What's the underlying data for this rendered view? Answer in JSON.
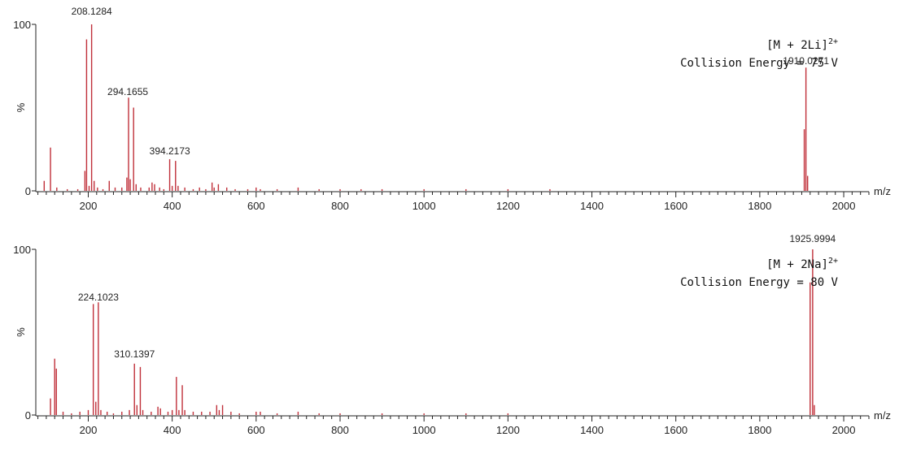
{
  "colors": {
    "peak": "#c0303a",
    "axis": "#222222",
    "text": "#222222"
  },
  "chart_data": [
    {
      "type": "bar",
      "name": "panel-li",
      "xlabel": "m/z",
      "ylabel": "%",
      "xlim": [
        75,
        2060
      ],
      "ylim": [
        0,
        100
      ],
      "x_ticks": [
        200,
        400,
        600,
        800,
        1000,
        1200,
        1400,
        1600,
        1800,
        2000
      ],
      "y_ticks": [
        0,
        100
      ],
      "annotation_line1": "[M + 2Li]",
      "annotation_charge": "2+",
      "annotation_line2": "Collision Energy = 75 V",
      "peak_labels": [
        {
          "mz": 208.1284,
          "text": "208.1284"
        },
        {
          "mz": 294.1655,
          "text": "294.1655"
        },
        {
          "mz": 394.2173,
          "text": "394.2173"
        },
        {
          "mz": 1910.0271,
          "text": "1910.0271"
        }
      ],
      "peaks": [
        [
          95,
          6
        ],
        [
          110,
          26
        ],
        [
          125,
          2
        ],
        [
          150,
          1
        ],
        [
          175,
          1
        ],
        [
          192,
          12
        ],
        [
          196,
          91
        ],
        [
          202,
          3
        ],
        [
          208,
          100
        ],
        [
          214,
          6
        ],
        [
          222,
          2
        ],
        [
          235,
          1
        ],
        [
          250,
          6
        ],
        [
          264,
          2
        ],
        [
          280,
          2
        ],
        [
          292,
          8
        ],
        [
          296,
          56
        ],
        [
          300,
          7
        ],
        [
          308,
          50
        ],
        [
          314,
          4
        ],
        [
          325,
          2
        ],
        [
          345,
          2
        ],
        [
          352,
          5
        ],
        [
          358,
          4
        ],
        [
          370,
          2
        ],
        [
          380,
          1
        ],
        [
          394,
          19
        ],
        [
          400,
          3
        ],
        [
          408,
          18
        ],
        [
          414,
          3
        ],
        [
          430,
          2
        ],
        [
          450,
          1
        ],
        [
          465,
          2
        ],
        [
          480,
          1
        ],
        [
          495,
          5
        ],
        [
          500,
          2
        ],
        [
          510,
          4
        ],
        [
          530,
          2
        ],
        [
          550,
          1
        ],
        [
          580,
          1
        ],
        [
          600,
          2
        ],
        [
          610,
          1
        ],
        [
          650,
          1
        ],
        [
          700,
          2
        ],
        [
          750,
          1
        ],
        [
          800,
          1
        ],
        [
          850,
          1
        ],
        [
          900,
          1
        ],
        [
          1000,
          1
        ],
        [
          1100,
          1
        ],
        [
          1200,
          1
        ],
        [
          1300,
          1
        ],
        [
          1906,
          37
        ],
        [
          1910,
          74
        ],
        [
          1914,
          9
        ]
      ]
    },
    {
      "type": "bar",
      "name": "panel-na",
      "xlabel": "m/z",
      "ylabel": "%",
      "xlim": [
        75,
        2060
      ],
      "ylim": [
        0,
        100
      ],
      "x_ticks": [
        200,
        400,
        600,
        800,
        1000,
        1200,
        1400,
        1600,
        1800,
        2000
      ],
      "y_ticks": [
        0,
        100
      ],
      "annotation_line1": "[M + 2Na]",
      "annotation_charge": "2+",
      "annotation_line2": "Collision Energy = 80 V",
      "peak_labels": [
        {
          "mz": 224.1023,
          "text": "224.1023"
        },
        {
          "mz": 310.1397,
          "text": "310.1397"
        },
        {
          "mz": 1925.9994,
          "text": "1925.9994"
        }
      ],
      "peaks": [
        [
          110,
          10
        ],
        [
          120,
          34
        ],
        [
          124,
          28
        ],
        [
          140,
          2
        ],
        [
          160,
          1
        ],
        [
          180,
          2
        ],
        [
          200,
          3
        ],
        [
          212,
          67
        ],
        [
          218,
          8
        ],
        [
          224,
          68
        ],
        [
          230,
          3
        ],
        [
          245,
          2
        ],
        [
          260,
          1
        ],
        [
          280,
          2
        ],
        [
          298,
          3
        ],
        [
          310,
          31
        ],
        [
          316,
          6
        ],
        [
          324,
          29
        ],
        [
          330,
          3
        ],
        [
          350,
          2
        ],
        [
          366,
          5
        ],
        [
          372,
          4
        ],
        [
          390,
          2
        ],
        [
          400,
          3
        ],
        [
          410,
          23
        ],
        [
          416,
          3
        ],
        [
          424,
          18
        ],
        [
          430,
          3
        ],
        [
          450,
          2
        ],
        [
          470,
          2
        ],
        [
          490,
          2
        ],
        [
          506,
          6
        ],
        [
          512,
          3
        ],
        [
          520,
          6
        ],
        [
          540,
          2
        ],
        [
          560,
          1
        ],
        [
          600,
          2
        ],
        [
          610,
          2
        ],
        [
          650,
          1
        ],
        [
          700,
          2
        ],
        [
          750,
          1
        ],
        [
          800,
          1
        ],
        [
          900,
          1
        ],
        [
          1000,
          1
        ],
        [
          1100,
          1
        ],
        [
          1200,
          1
        ],
        [
          1920,
          80
        ],
        [
          1926,
          100
        ],
        [
          1930,
          6
        ]
      ]
    }
  ]
}
